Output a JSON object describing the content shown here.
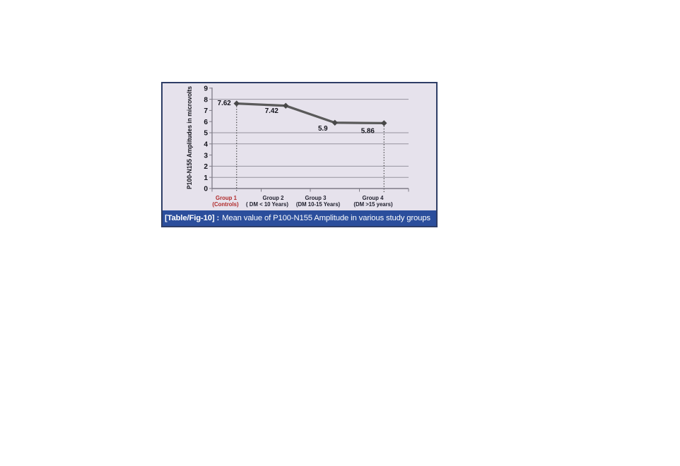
{
  "page": {
    "background": "#ffffff"
  },
  "caption": {
    "tag": "[Table/Fig-10] :",
    "text": "Mean value of P100-N155 Amplitude in various study groups"
  },
  "chart_data": {
    "type": "line",
    "title": "",
    "xlabel": "",
    "ylabel": "P100-N155 Amplitudes in microvolts",
    "categories": [
      {
        "label": "Group 1",
        "sublabel": "(Controls)",
        "label_color": "#b02a2a"
      },
      {
        "label": "Group 2",
        "sublabel": "( DM < 10 Years)",
        "label_color": "#20202e"
      },
      {
        "label": "Group 3",
        "sublabel": "(DM 10-15 Years)",
        "label_color": "#20202e"
      },
      {
        "label": "Group 4",
        "sublabel": "(DM >15 years)",
        "label_color": "#20202e"
      }
    ],
    "values": [
      7.62,
      7.42,
      5.9,
      5.86
    ],
    "point_labels": [
      "7.62",
      "7.42",
      "5.9",
      "5.86"
    ],
    "ylim": [
      0,
      9
    ],
    "yticks": [
      0,
      1,
      2,
      3,
      4,
      5,
      6,
      7,
      8,
      9
    ],
    "visible_gridlines": [
      8,
      5,
      4,
      2,
      1
    ],
    "guide_line_indices": [
      0,
      3
    ],
    "legend": "none",
    "grid": "partial-horizontal",
    "colors": {
      "plot_bg": "#e6e2ec",
      "figure_border": "#2e3d66",
      "caption_bg": "#2b4e9c",
      "caption_text": "#ffffff",
      "grid": "#96939e",
      "axis": "#7e7b86",
      "line": "#5a5a5a",
      "marker": "#484848",
      "guide": "#2d2d2d",
      "tick_label": "#14141c",
      "point_label": "#14141c"
    }
  }
}
